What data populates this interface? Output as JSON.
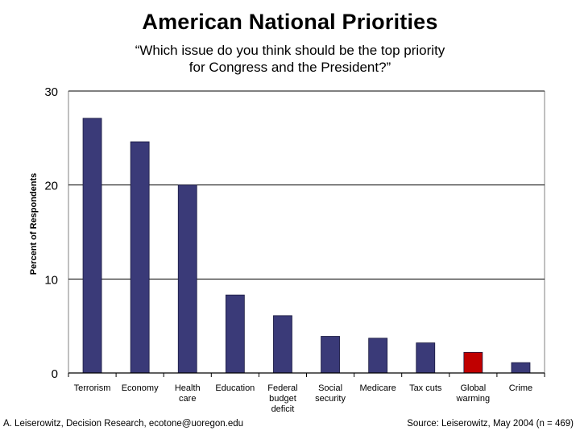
{
  "title": "American National Priorities",
  "subtitle_line1": "“Which issue do you think should be the top priority",
  "subtitle_line2": "for Congress and the President?”",
  "footer": {
    "left": "A. Leiserowitz, Decision Research, ecotone@uoregon.edu",
    "right": "Source: Leiserowitz, May 2004 (n = 469)"
  },
  "colors": {
    "bar": "#3a3a78",
    "bar_highlight": "#c00000",
    "gridline": "#000000"
  },
  "chart_data": {
    "type": "bar",
    "title": "American National Priorities",
    "xlabel": "",
    "ylabel": "Percent of Respondents",
    "ylim": [
      0,
      30
    ],
    "yticks": [
      0,
      10,
      20,
      30
    ],
    "grid": true,
    "categories": [
      [
        "Terrorism"
      ],
      [
        "Economy"
      ],
      [
        "Health",
        "care"
      ],
      [
        "Education"
      ],
      [
        "Federal",
        "budget",
        "deficit"
      ],
      [
        "Social",
        "security"
      ],
      [
        "Medicare"
      ],
      [
        "Tax cuts"
      ],
      [
        "Global",
        "warming"
      ],
      [
        "Crime"
      ]
    ],
    "values": [
      27.1,
      24.6,
      20.0,
      8.3,
      6.1,
      3.9,
      3.7,
      3.2,
      2.2,
      1.1
    ],
    "highlight_index": 8
  }
}
